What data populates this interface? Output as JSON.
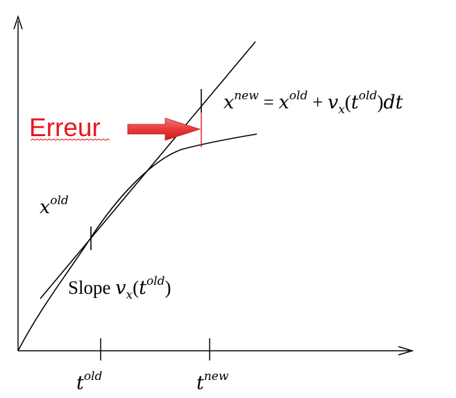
{
  "labels": {
    "error": "Erreur",
    "x_old": {
      "base": "x",
      "sup": "old"
    },
    "t_old": {
      "base": "t",
      "sup": "old"
    },
    "t_new": {
      "base": "t",
      "sup": "new"
    },
    "slope": {
      "word": "Slope",
      "v": "v",
      "sub": "x",
      "open": "(",
      "t": "t",
      "sup": "old",
      "close": ")"
    },
    "equation": {
      "lhs": "x",
      "lhs_sup": "new",
      "eq": " = ",
      "x": "x",
      "x_sup": "old",
      "plus": " + ",
      "v": "v",
      "v_sub": "x",
      "open": "(",
      "t": "t",
      "t_sup": "old",
      "close": ")",
      "dt": "dt"
    }
  },
  "colors": {
    "ink": "#000000",
    "error_text": "#e8141c",
    "error_underline": "#e8141c",
    "arrow_fill": "#e83a3a",
    "arrow_dark": "#c81e1e",
    "error_segment": "#d81818"
  }
}
